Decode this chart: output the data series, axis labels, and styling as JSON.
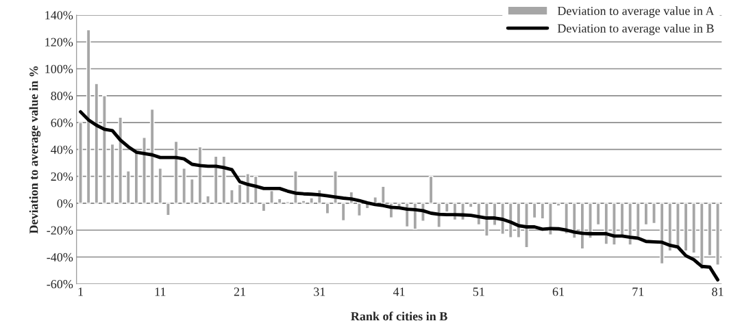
{
  "chart_data": {
    "type": "bar",
    "xlabel": "Rank of cities in B",
    "ylabel": "Deviation to average value in %",
    "x": [
      1,
      2,
      3,
      4,
      5,
      6,
      7,
      8,
      9,
      10,
      11,
      12,
      13,
      14,
      15,
      16,
      17,
      18,
      19,
      20,
      21,
      22,
      23,
      24,
      25,
      26,
      27,
      28,
      29,
      30,
      31,
      32,
      33,
      34,
      35,
      36,
      37,
      38,
      39,
      40,
      41,
      42,
      43,
      44,
      45,
      46,
      47,
      48,
      49,
      50,
      51,
      52,
      53,
      54,
      55,
      56,
      57,
      58,
      59,
      60,
      61,
      62,
      63,
      64,
      65,
      66,
      67,
      68,
      69,
      70,
      71,
      72,
      73,
      74,
      75,
      76,
      77,
      78,
      79,
      80,
      81
    ],
    "series": [
      {
        "name": "Deviation to average value in A",
        "color": "#a6a6a6",
        "values": [
          60,
          129,
          89,
          80,
          44,
          64,
          24,
          38,
          49,
          70,
          26,
          -9,
          46,
          26,
          18,
          42,
          5.5,
          35,
          35,
          10,
          14,
          22,
          20,
          -6,
          9.4,
          3.4,
          1.2,
          24,
          2,
          4,
          10,
          -7.7,
          24,
          -13,
          8.5,
          -9.4,
          -4,
          4.6,
          12.6,
          -10.8,
          -3.4,
          -17.6,
          -19.3,
          -13.3,
          20,
          -18,
          -6.5,
          -12.5,
          -12.5,
          -3,
          -16,
          -24.4,
          -16.4,
          -23,
          -25.6,
          -25.6,
          -33,
          -11,
          -11.6,
          -23.6,
          -2,
          -22.7,
          -26,
          -34,
          -26,
          -16,
          -30.6,
          -31,
          -25,
          -31,
          -25,
          -16,
          -15,
          -45,
          -35.5,
          -32,
          -35.5,
          -37,
          -49,
          -39,
          -46
        ]
      },
      {
        "name": "Deviation to average value in B",
        "type": "line",
        "color": "#000000",
        "values": [
          68,
          62,
          58,
          55,
          54,
          47,
          42,
          38,
          37,
          36,
          34,
          34,
          34,
          33,
          29,
          28,
          27.5,
          27.5,
          26.5,
          25,
          16,
          14,
          12.6,
          11,
          11,
          11,
          9,
          7.5,
          7,
          6.7,
          6.3,
          5.5,
          4.6,
          3.8,
          3.2,
          2,
          0.3,
          -1,
          -1.7,
          -3,
          -3.4,
          -4.4,
          -4.8,
          -5.6,
          -7.4,
          -8.2,
          -8.5,
          -8.5,
          -8.7,
          -9,
          -10,
          -11,
          -11,
          -12,
          -14,
          -16.7,
          -17.6,
          -17.6,
          -19.3,
          -18.8,
          -19,
          -20,
          -21.5,
          -22.4,
          -22.7,
          -22.7,
          -22.7,
          -24.4,
          -24.4,
          -25.3,
          -26,
          -28.4,
          -28.7,
          -29,
          -31.3,
          -32.6,
          -39,
          -42,
          -47,
          -47.5,
          -57
        ]
      }
    ],
    "xlim": [
      0.5,
      81.5
    ],
    "xticks": [
      1,
      11,
      21,
      31,
      41,
      51,
      61,
      71,
      81
    ],
    "ylim": [
      -60,
      140
    ],
    "yticks": [
      {
        "value": -60,
        "label": "-60%"
      },
      {
        "value": -40,
        "label": "-40%"
      },
      {
        "value": -20,
        "label": "-20%"
      },
      {
        "value": 0,
        "label": "0%"
      },
      {
        "value": 20,
        "label": "20%"
      },
      {
        "value": 40,
        "label": "40%"
      },
      {
        "value": 60,
        "label": "60%"
      },
      {
        "value": 80,
        "label": "80%"
      },
      {
        "value": 100,
        "label": "100%"
      },
      {
        "value": 120,
        "label": "120%"
      },
      {
        "value": 140,
        "label": "140%"
      }
    ],
    "grid": "y",
    "legend": "top right"
  }
}
